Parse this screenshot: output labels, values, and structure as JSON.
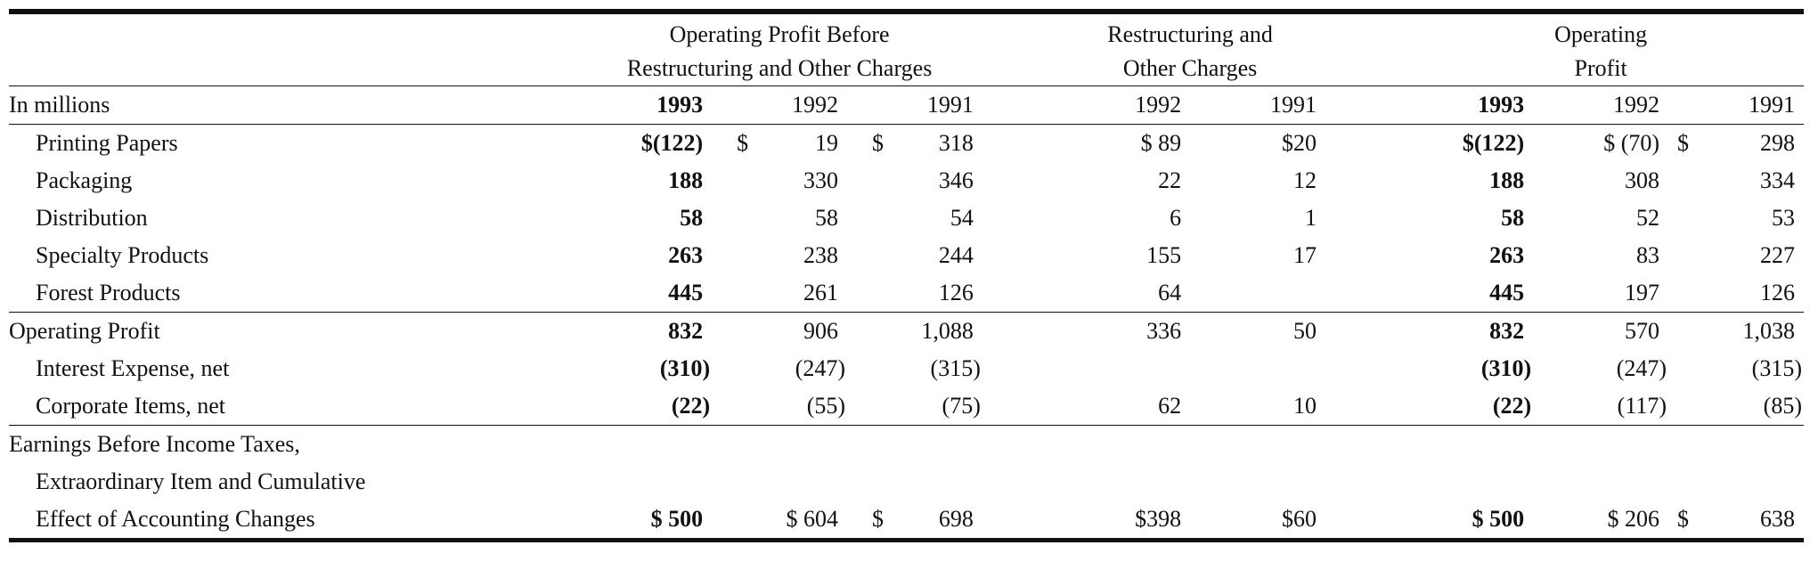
{
  "table": {
    "group_headers": [
      {
        "line1": "Operating Profit Before",
        "line2": "Restructuring and Other Charges"
      },
      {
        "line1": "Restructuring and",
        "line2": "Other Charges"
      },
      {
        "line1": "Operating",
        "line2": "Profit"
      }
    ],
    "unit_label": "In millions",
    "years": {
      "opb": [
        "1993",
        "1992",
        "1991"
      ],
      "roc": [
        "1992",
        "1991"
      ],
      "op": [
        "1993",
        "1992",
        "1991"
      ]
    },
    "segments": [
      {
        "label": "Printing Papers",
        "opb": [
          "$(122)",
          "$",
          "19",
          "$",
          "318"
        ],
        "roc": [
          "$ 89",
          "$20"
        ],
        "op": [
          "$(122)",
          "$ (70)",
          "$",
          "298"
        ]
      },
      {
        "label": "Packaging",
        "opb": [
          "188",
          "330",
          "346"
        ],
        "roc": [
          "22",
          "12"
        ],
        "op": [
          "188",
          "308",
          "334"
        ]
      },
      {
        "label": "Distribution",
        "opb": [
          "58",
          "58",
          "54"
        ],
        "roc": [
          "6",
          "1"
        ],
        "op": [
          "58",
          "52",
          "53"
        ]
      },
      {
        "label": "Specialty Products",
        "opb": [
          "263",
          "238",
          "244"
        ],
        "roc": [
          "155",
          "17"
        ],
        "op": [
          "263",
          "83",
          "227"
        ]
      },
      {
        "label": "Forest Products",
        "opb": [
          "445",
          "261",
          "126"
        ],
        "roc": [
          "64",
          ""
        ],
        "op": [
          "445",
          "197",
          "126"
        ]
      }
    ],
    "operating_profit": {
      "label": "Operating Profit",
      "opb": [
        "832",
        "906",
        "1,088"
      ],
      "roc": [
        "336",
        "50"
      ],
      "op": [
        "832",
        "570",
        "1,038"
      ]
    },
    "interest": {
      "label": "Interest Expense, net",
      "opb": [
        "(310)",
        "(247)",
        "(315)"
      ],
      "roc": [
        "",
        ""
      ],
      "op": [
        "(310)",
        "(247)",
        "(315)"
      ]
    },
    "corporate": {
      "label": "Corporate Items, net",
      "opb": [
        "(22)",
        "(55)",
        "(75)"
      ],
      "roc": [
        "62",
        "10"
      ],
      "op": [
        "(22)",
        "(117)",
        "(85)"
      ]
    },
    "earnings": {
      "label_line1": "Earnings Before Income Taxes,",
      "label_line2": "Extraordinary Item and Cumulative",
      "label_line3": "Effect of Accounting Changes",
      "opb": [
        "$ 500",
        "$ 604",
        "$",
        "698"
      ],
      "roc": [
        "$398",
        "$60"
      ],
      "op": [
        "$ 500",
        "$ 206",
        "$",
        "638"
      ]
    }
  }
}
